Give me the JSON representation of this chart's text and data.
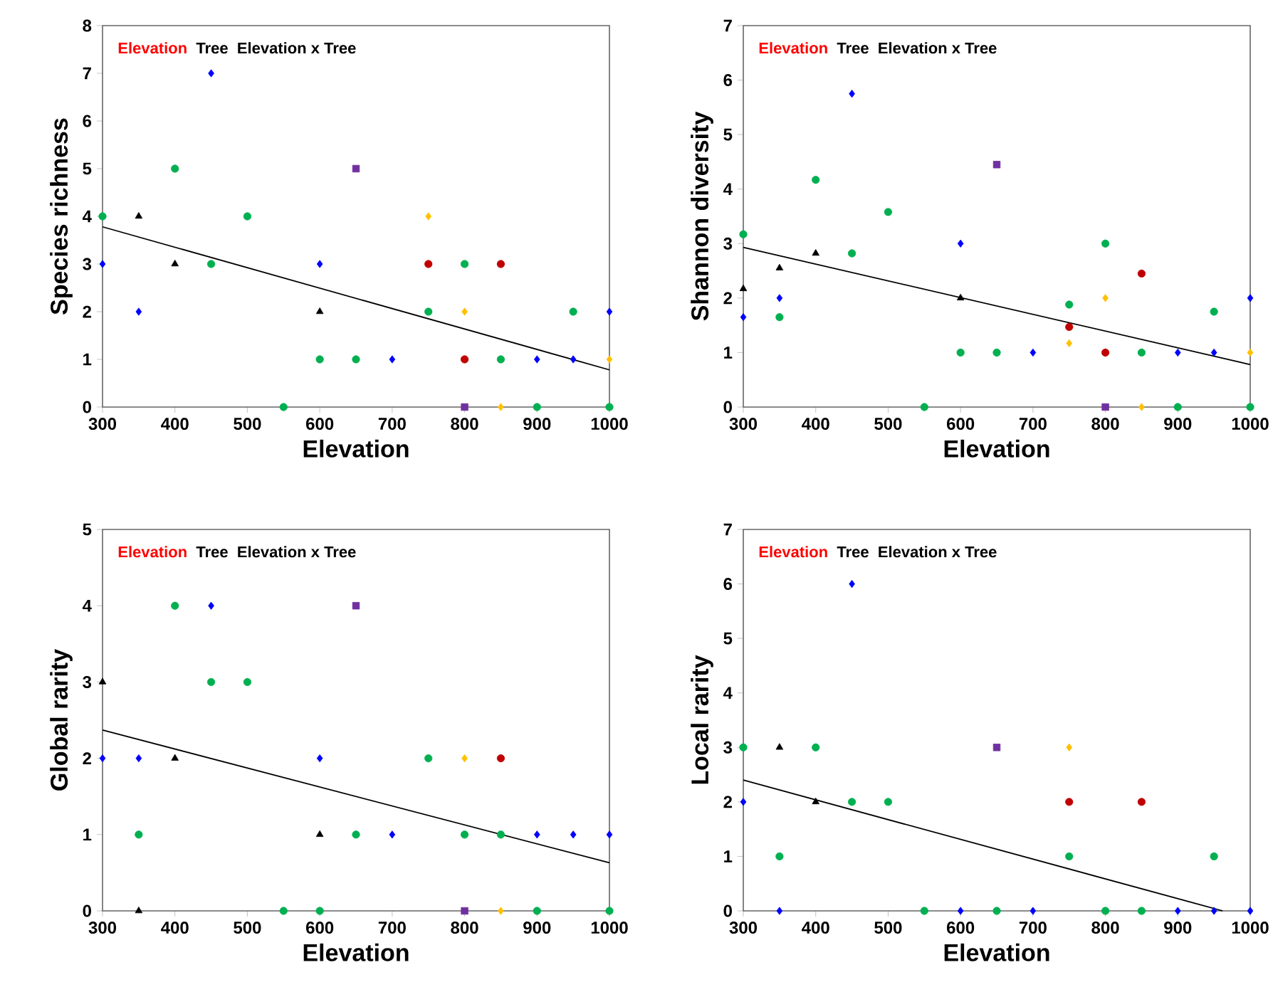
{
  "chart_data": [
    {
      "type": "scatter",
      "xlabel": "Elevation",
      "ylabel": "Species richness",
      "xlim": [
        300,
        1000
      ],
      "xticks": [
        300,
        400,
        500,
        600,
        700,
        800,
        900,
        1000
      ],
      "ylim": [
        0,
        8
      ],
      "yticks": [
        0,
        1,
        2,
        3,
        4,
        5,
        6,
        7,
        8
      ],
      "annotations": [
        "Elevation",
        "Tree",
        "Elevation x Tree"
      ],
      "series": [
        {
          "color": "#00b050",
          "marker": "circle",
          "x": [
            300,
            400,
            450,
            500,
            550,
            600,
            650,
            750,
            800,
            850,
            900,
            950,
            1000
          ],
          "values": [
            4,
            5,
            3,
            4,
            0,
            1,
            1,
            2,
            3,
            1,
            0,
            2,
            0
          ]
        },
        {
          "color": "#0000ff",
          "marker": "diamond",
          "x": [
            300,
            350,
            450,
            600,
            700,
            900,
            950,
            1000
          ],
          "values": [
            3,
            2,
            7,
            3,
            1,
            1,
            1,
            2
          ]
        },
        {
          "color": "#000000",
          "marker": "triangle",
          "x": [
            350,
            400,
            600
          ],
          "values": [
            4,
            3,
            2
          ]
        },
        {
          "color": "#c00000",
          "marker": "circle",
          "x": [
            750,
            800,
            850
          ],
          "values": [
            3,
            1,
            3
          ]
        },
        {
          "color": "#ffc000",
          "marker": "diamond",
          "x": [
            750,
            800,
            850,
            1000
          ],
          "values": [
            4,
            2,
            0,
            1
          ]
        },
        {
          "color": "#7030a0",
          "marker": "square",
          "x": [
            650,
            800
          ],
          "values": [
            5,
            0
          ]
        },
        {
          "type": "line",
          "color": "#000000",
          "marker": "none",
          "x": [
            300,
            1000
          ],
          "values": [
            3.78,
            0.78
          ]
        }
      ]
    },
    {
      "type": "scatter",
      "xlabel": "Elevation",
      "ylabel": "Shannon diversity",
      "xlim": [
        300,
        1000
      ],
      "xticks": [
        300,
        400,
        500,
        600,
        700,
        800,
        900,
        1000
      ],
      "ylim": [
        0,
        7
      ],
      "yticks": [
        0,
        1,
        2,
        3,
        4,
        5,
        6,
        7
      ],
      "annotations": [
        "Elevation",
        "Tree",
        "Elevation x Tree"
      ],
      "series": [
        {
          "color": "#00b050",
          "marker": "circle",
          "x": [
            300,
            350,
            400,
            450,
            500,
            550,
            600,
            650,
            750,
            800,
            850,
            900,
            950,
            1000
          ],
          "values": [
            3.17,
            1.65,
            4.17,
            2.82,
            3.58,
            0,
            1,
            1,
            1.88,
            3,
            1,
            0,
            1.75,
            0
          ]
        },
        {
          "color": "#0000ff",
          "marker": "diamond",
          "x": [
            300,
            350,
            450,
            600,
            700,
            900,
            950,
            1000
          ],
          "values": [
            1.65,
            2,
            5.75,
            3,
            1,
            1,
            1,
            2
          ]
        },
        {
          "color": "#000000",
          "marker": "triangle",
          "x": [
            300,
            350,
            400,
            600
          ],
          "values": [
            2.17,
            2.55,
            2.82,
            2
          ]
        },
        {
          "color": "#c00000",
          "marker": "circle",
          "x": [
            750,
            800,
            850
          ],
          "values": [
            1.47,
            1,
            2.45
          ]
        },
        {
          "color": "#ffc000",
          "marker": "diamond",
          "x": [
            750,
            800,
            850,
            1000
          ],
          "values": [
            1.17,
            2,
            0,
            1
          ]
        },
        {
          "color": "#7030a0",
          "marker": "square",
          "x": [
            650,
            800
          ],
          "values": [
            4.45,
            0
          ]
        },
        {
          "type": "line",
          "color": "#000000",
          "marker": "none",
          "x": [
            300,
            1000
          ],
          "values": [
            2.93,
            0.78
          ]
        }
      ]
    },
    {
      "type": "scatter",
      "xlabel": "Elevation",
      "ylabel": "Global rarity",
      "xlim": [
        300,
        1000
      ],
      "xticks": [
        300,
        400,
        500,
        600,
        700,
        800,
        900,
        1000
      ],
      "ylim": [
        0,
        5
      ],
      "yticks": [
        0,
        1,
        2,
        3,
        4,
        5
      ],
      "annotations": [
        "Elevation",
        "Tree",
        "Elevation x Tree"
      ],
      "series": [
        {
          "color": "#00b050",
          "marker": "circle",
          "x": [
            350,
            400,
            450,
            500,
            550,
            600,
            650,
            750,
            800,
            850,
            900,
            1000
          ],
          "values": [
            1,
            4,
            3,
            3,
            0,
            0,
            1,
            2,
            1,
            1,
            0,
            0
          ]
        },
        {
          "color": "#0000ff",
          "marker": "diamond",
          "x": [
            300,
            350,
            450,
            600,
            700,
            900,
            950,
            1000
          ],
          "values": [
            2,
            2,
            4,
            2,
            1,
            1,
            1,
            1
          ]
        },
        {
          "color": "#000000",
          "marker": "triangle",
          "x": [
            300,
            350,
            400,
            600
          ],
          "values": [
            3,
            0,
            2,
            1
          ]
        },
        {
          "color": "#c00000",
          "marker": "circle",
          "x": [
            850
          ],
          "values": [
            2
          ]
        },
        {
          "color": "#ffc000",
          "marker": "diamond",
          "x": [
            800,
            850
          ],
          "values": [
            2,
            0
          ]
        },
        {
          "color": "#7030a0",
          "marker": "square",
          "x": [
            650,
            800
          ],
          "values": [
            4,
            0
          ]
        },
        {
          "type": "line",
          "color": "#000000",
          "marker": "none",
          "x": [
            300,
            1000
          ],
          "values": [
            2.37,
            0.63
          ]
        }
      ]
    },
    {
      "type": "scatter",
      "xlabel": "Elevation",
      "ylabel": "Local rarity",
      "xlim": [
        300,
        1000
      ],
      "xticks": [
        300,
        400,
        500,
        600,
        700,
        800,
        900,
        1000
      ],
      "ylim": [
        0,
        7
      ],
      "yticks": [
        0,
        1,
        2,
        3,
        4,
        5,
        6,
        7
      ],
      "annotations": [
        "Elevation",
        "Tree",
        "Elevation x Tree"
      ],
      "series": [
        {
          "color": "#00b050",
          "marker": "circle",
          "x": [
            300,
            350,
            400,
            450,
            500,
            550,
            650,
            750,
            800,
            850,
            950
          ],
          "values": [
            3,
            1,
            3,
            2,
            2,
            0,
            0,
            1,
            0,
            0,
            1
          ]
        },
        {
          "color": "#0000ff",
          "marker": "diamond",
          "x": [
            300,
            350,
            450,
            600,
            700,
            900,
            950,
            1000
          ],
          "values": [
            2,
            0,
            6,
            0,
            0,
            0,
            0,
            0
          ]
        },
        {
          "color": "#000000",
          "marker": "triangle",
          "x": [
            350,
            400
          ],
          "values": [
            3,
            2
          ]
        },
        {
          "color": "#c00000",
          "marker": "circle",
          "x": [
            750,
            850
          ],
          "values": [
            2,
            2
          ]
        },
        {
          "color": "#ffc000",
          "marker": "diamond",
          "x": [
            750
          ],
          "values": [
            3
          ]
        },
        {
          "color": "#7030a0",
          "marker": "square",
          "x": [
            650
          ],
          "values": [
            3
          ]
        },
        {
          "type": "line",
          "color": "#000000",
          "marker": "none",
          "x": [
            300,
            962
          ],
          "values": [
            2.4,
            0
          ]
        }
      ]
    }
  ]
}
